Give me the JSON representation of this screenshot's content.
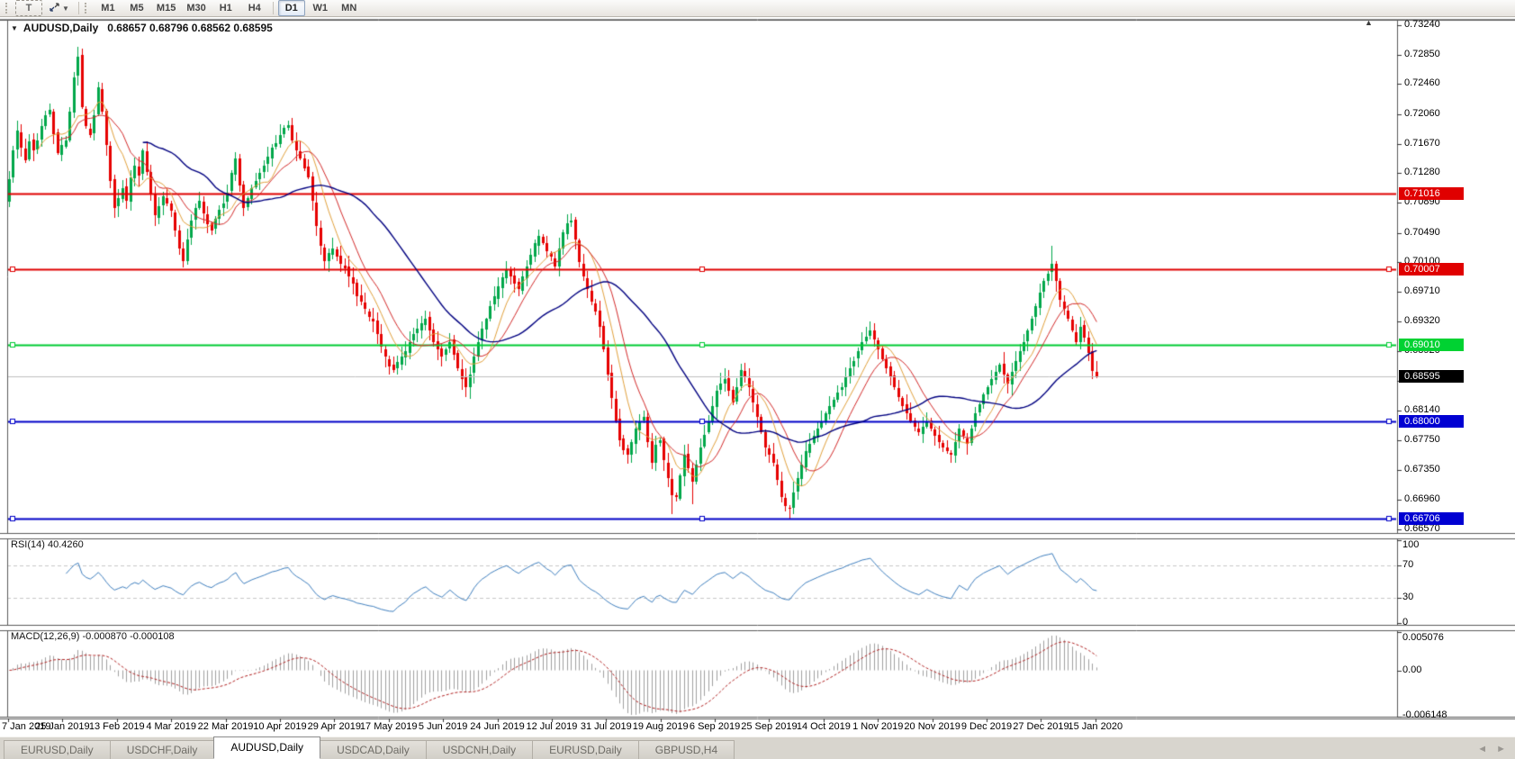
{
  "toolbar": {
    "text_tool_label": "T",
    "timeframes": [
      "M1",
      "M5",
      "M15",
      "M30",
      "H1",
      "H4",
      "D1",
      "W1",
      "MN"
    ],
    "active_timeframe": "D1"
  },
  "icons": {
    "collapse_triangle": "▼",
    "dropdown_caret": "▼",
    "scroll_up": "▲",
    "tab_nav_left": "◄",
    "tab_nav_right": "►"
  },
  "chart": {
    "title": "AUDUSD,Daily",
    "ohlc": "0.68657 0.68796 0.68562 0.68595"
  },
  "price_axis": {
    "ticks": [
      "0.73240",
      "0.72850",
      "0.72460",
      "0.72060",
      "0.71670",
      "0.71280",
      "0.70890",
      "0.70490",
      "0.70100",
      "0.69710",
      "0.69320",
      "0.68920",
      "0.68530",
      "0.68140",
      "0.67750",
      "0.67350",
      "0.66960",
      "0.66570"
    ]
  },
  "date_axis": {
    "labels": [
      "7 Jan 2019",
      "25 Jan 2019",
      "13 Feb 2019",
      "4 Mar 2019",
      "22 Mar 2019",
      "10 Apr 2019",
      "29 Apr 2019",
      "17 May 2019",
      "5 Jun 2019",
      "24 Jun 2019",
      "12 Jul 2019",
      "31 Jul 2019",
      "19 Aug 2019",
      "6 Sep 2019",
      "25 Sep 2019",
      "14 Oct 2019",
      "1 Nov 2019",
      "20 Nov 2019",
      "9 Dec 2019",
      "27 Dec 2019",
      "15 Jan 2020"
    ]
  },
  "levels": [
    {
      "text": "0.71016",
      "value": 0.71016,
      "color": "#e00000",
      "label_bg": "#e00000",
      "selected": false
    },
    {
      "text": "0.70007",
      "value": 0.70007,
      "color": "#e00000",
      "label_bg": "#e00000",
      "selected": true
    },
    {
      "text": "0.69010",
      "value": 0.6901,
      "color": "#00cc33",
      "label_bg": "#00d232",
      "selected": true
    },
    {
      "text": "0.68000",
      "value": 0.68,
      "color": "#0000c8",
      "label_bg": "#0000d2",
      "selected": true
    },
    {
      "text": "0.66706",
      "value": 0.66706,
      "color": "#0000c8",
      "label_bg": "#0000d2",
      "selected": true
    }
  ],
  "current_price": {
    "text": "0.68595",
    "value": 0.68595,
    "line_color": "#c0c0c0",
    "label_bg": "#000000"
  },
  "rsi": {
    "label": "RSI(14) 40.4260",
    "axis": [
      {
        "text": "100",
        "value": 100
      },
      {
        "text": "70",
        "value": 70
      },
      {
        "text": "30",
        "value": 30
      },
      {
        "text": "0",
        "value": 0
      }
    ],
    "dashed_levels": [
      70,
      30
    ],
    "last_value": 40.426
  },
  "macd": {
    "label": "MACD(12,26,9) -0.000870 -0.000108",
    "axis": [
      {
        "text": "0.005076",
        "value": 0.005076
      },
      {
        "text": "0.00",
        "value": 0
      },
      {
        "text": "-0.006148",
        "value": -0.006148
      }
    ],
    "last_values": [
      -0.00087,
      -0.000108
    ]
  },
  "tabs": {
    "items": [
      "EURUSD,Daily",
      "USDCHF,Daily",
      "AUDUSD,Daily",
      "USDCAD,Daily",
      "USDCNH,Daily",
      "EURUSD,Daily",
      "GBPUSD,H4"
    ],
    "active_index": 2
  },
  "chart_data": {
    "type": "candlestick",
    "symbol": "AUDUSD",
    "timeframe": "Daily",
    "x_labels": [
      "7 Jan 2019",
      "25 Jan 2019",
      "13 Feb 2019",
      "4 Mar 2019",
      "22 Mar 2019",
      "10 Apr 2019",
      "29 Apr 2019",
      "17 May 2019",
      "5 Jun 2019",
      "24 Jun 2019",
      "12 Jul 2019",
      "31 Jul 2019",
      "19 Aug 2019",
      "6 Sep 2019",
      "25 Sep 2019",
      "14 Oct 2019",
      "1 Nov 2019",
      "20 Nov 2019",
      "9 Dec 2019",
      "27 Dec 2019",
      "15 Jan 2020"
    ],
    "price_range": {
      "top": 0.7324,
      "bottom": 0.66518
    },
    "last_ohlc": {
      "open": 0.68657,
      "high": 0.68796,
      "low": 0.68562,
      "close": 0.68595
    },
    "seed": 11,
    "closes": [
      0.712,
      0.7158,
      0.7185,
      0.7162,
      0.7145,
      0.717,
      0.7158,
      0.7172,
      0.719,
      0.7205,
      0.7212,
      0.718,
      0.7155,
      0.7165,
      0.7172,
      0.721,
      0.7255,
      0.7282,
      0.7215,
      0.719,
      0.7178,
      0.7205,
      0.7242,
      0.721,
      0.7165,
      0.7118,
      0.7082,
      0.7095,
      0.7108,
      0.7092,
      0.7122,
      0.7138,
      0.7125,
      0.7158,
      0.713,
      0.71,
      0.7072,
      0.7085,
      0.7098,
      0.7088,
      0.7078,
      0.7052,
      0.7028,
      0.7012,
      0.704,
      0.7065,
      0.7082,
      0.7092,
      0.7075,
      0.706,
      0.7052,
      0.7068,
      0.708,
      0.7088,
      0.7102,
      0.7128,
      0.7148,
      0.7112,
      0.7082,
      0.7095,
      0.7108,
      0.7118,
      0.7128,
      0.7138,
      0.715,
      0.7162,
      0.7168,
      0.7178,
      0.7188,
      0.7192,
      0.7172,
      0.7158,
      0.7148,
      0.7135,
      0.7122,
      0.7092,
      0.7058,
      0.7032,
      0.7012,
      0.7022,
      0.7028,
      0.7018,
      0.7008,
      0.7002,
      0.6992,
      0.6982,
      0.6965,
      0.6958,
      0.6948,
      0.6938,
      0.6932,
      0.6915,
      0.6898,
      0.6885,
      0.6872,
      0.6868,
      0.6878,
      0.6885,
      0.6892,
      0.6905,
      0.6915,
      0.6922,
      0.693,
      0.6935,
      0.692,
      0.6905,
      0.6895,
      0.6885,
      0.6895,
      0.6905,
      0.6888,
      0.687,
      0.6855,
      0.6845,
      0.6862,
      0.6885,
      0.6905,
      0.6922,
      0.6935,
      0.6952,
      0.6965,
      0.6978,
      0.699,
      0.7,
      0.6992,
      0.6982,
      0.6975,
      0.6992,
      0.7005,
      0.702,
      0.7035,
      0.7045,
      0.7035,
      0.7025,
      0.7018,
      0.7005,
      0.7028,
      0.705,
      0.7062,
      0.7065,
      0.704,
      0.701,
      0.6992,
      0.6975,
      0.6958,
      0.6945,
      0.6925,
      0.6895,
      0.6862,
      0.683,
      0.68,
      0.6775,
      0.6762,
      0.6755,
      0.6772,
      0.679,
      0.68,
      0.6805,
      0.6772,
      0.6745,
      0.6768,
      0.6775,
      0.6748,
      0.6725,
      0.6702,
      0.67,
      0.6728,
      0.6755,
      0.6738,
      0.672,
      0.6742,
      0.6765,
      0.6782,
      0.68,
      0.682,
      0.684,
      0.685,
      0.6855,
      0.684,
      0.6825,
      0.6845,
      0.6868,
      0.6858,
      0.6845,
      0.6825,
      0.6805,
      0.6785,
      0.6765,
      0.6755,
      0.6745,
      0.6722,
      0.67,
      0.6688,
      0.6685,
      0.6705,
      0.6725,
      0.6742,
      0.676,
      0.677,
      0.678,
      0.679,
      0.68,
      0.681,
      0.682,
      0.6828,
      0.6838,
      0.6845,
      0.6858,
      0.687,
      0.688,
      0.6892,
      0.6905,
      0.6912,
      0.692,
      0.6908,
      0.6895,
      0.6882,
      0.687,
      0.6858,
      0.6845,
      0.6832,
      0.682,
      0.681,
      0.68,
      0.6792,
      0.6785,
      0.6792,
      0.68,
      0.679,
      0.678,
      0.6772,
      0.6765,
      0.676,
      0.6755,
      0.6772,
      0.679,
      0.678,
      0.677,
      0.679,
      0.681,
      0.6822,
      0.6835,
      0.6845,
      0.6855,
      0.6865,
      0.6875,
      0.6862,
      0.685,
      0.6865,
      0.688,
      0.6892,
      0.6905,
      0.692,
      0.6935,
      0.6952,
      0.697,
      0.6985,
      0.6995,
      0.7008,
      0.6985,
      0.696,
      0.6948,
      0.6935,
      0.692,
      0.6905,
      0.6925,
      0.691,
      0.689,
      0.6866,
      0.68595
    ],
    "wick_overrides": [
      {
        "i": 16,
        "h": 0.7262
      },
      {
        "i": 17,
        "h": 0.7295
      },
      {
        "i": 43,
        "l": 0.7003
      },
      {
        "i": 113,
        "l": 0.6832
      },
      {
        "i": 164,
        "l": 0.6677
      },
      {
        "i": 169,
        "l": 0.669
      },
      {
        "i": 193,
        "l": 0.6671
      },
      {
        "i": 258,
        "h": 0.7032
      }
    ],
    "moving_averages": [
      {
        "period": 8,
        "color": "#e2a13c",
        "width": 1
      },
      {
        "period": 13,
        "color": "#d42a2a",
        "width": 1
      },
      {
        "period": 34,
        "color": "#000080",
        "width": 1.4
      }
    ],
    "indicators": [
      {
        "name": "RSI",
        "period": 14,
        "last": 40.426,
        "color": "#4080bf"
      },
      {
        "name": "MACD",
        "fast": 12,
        "slow": 26,
        "signal": 9,
        "last": [
          -0.00087,
          -0.000108
        ],
        "hist_color": "#a0a0a0",
        "signal_color": "#b22222"
      }
    ],
    "colors": {
      "up": "#00a74a",
      "down": "#e60000",
      "background": "#ffffff",
      "border": "#5a5a5a",
      "current_line": "#c0c0c0"
    }
  }
}
